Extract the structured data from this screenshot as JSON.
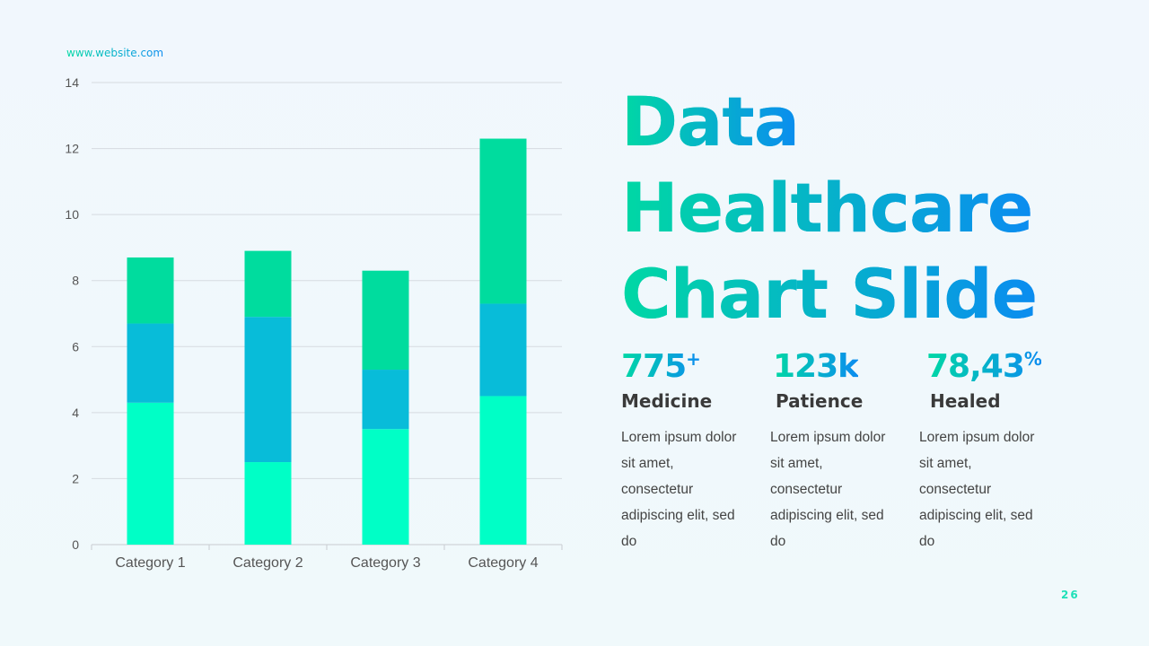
{
  "header": {
    "website": "www.website.com"
  },
  "title": {
    "lines": [
      "Data",
      "Healthcare",
      "Chart Slide"
    ]
  },
  "stats": [
    {
      "value": "775",
      "suffix": "+",
      "label": "Medicine",
      "desc": "Lorem ipsum dolor sit amet, consectetur adipiscing elit, sed do"
    },
    {
      "value": "123k",
      "suffix": "",
      "label": "Patience",
      "desc": "Lorem ipsum dolor sit amet, consectetur adipiscing elit, sed do"
    },
    {
      "value": "78,43",
      "suffix": "%",
      "label": "Healed",
      "desc": "Lorem ipsum dolor sit amet, consectetur adipiscing elit, sed do"
    }
  ],
  "page_number": "26",
  "chart_data": {
    "type": "bar",
    "stacked": true,
    "categories": [
      "Category 1",
      "Category 2",
      "Category 3",
      "Category 4"
    ],
    "series": [
      {
        "values": [
          4.3,
          2.5,
          3.5,
          4.5
        ],
        "color": "#00ffc6"
      },
      {
        "values": [
          2.4,
          4.4,
          1.8,
          2.8
        ],
        "color": "#08bcd9"
      },
      {
        "values": [
          2.0,
          2.0,
          3.0,
          5.0
        ],
        "color": "#00dc9e"
      }
    ],
    "ylim": [
      0,
      14
    ],
    "yticks": [
      0,
      2,
      4,
      6,
      8,
      10,
      12,
      14
    ],
    "grid": true,
    "legend": "none"
  }
}
